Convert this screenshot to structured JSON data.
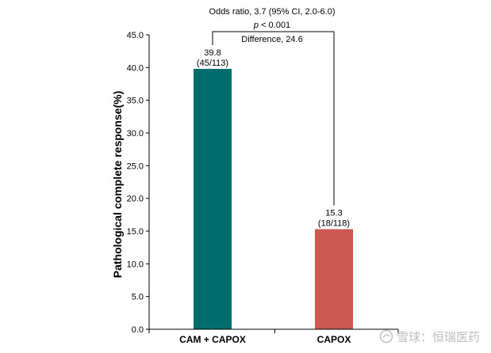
{
  "chart_data": {
    "type": "bar",
    "categories": [
      "CAM + CAPOX",
      "CAPOX"
    ],
    "values": [
      39.8,
      15.3
    ],
    "data_labels": [
      {
        "value": "39.8",
        "count": "(45/113)"
      },
      {
        "value": "15.3",
        "count": "(18/118)"
      }
    ],
    "colors": [
      "#006c6c",
      "#cd5a52"
    ],
    "ylabel": "Pathological complete response(%)",
    "xlabel": "",
    "ylim": [
      0,
      45
    ],
    "yticks": [
      "0.0",
      "5.0",
      "10.0",
      "15.0",
      "20.0",
      "25.0",
      "30.0",
      "35.0",
      "40.0",
      "45.0"
    ],
    "grid": false,
    "annotations": {
      "odds_ratio": "Odds ratio, 3.7 (95% CI, 2.0-6.0)",
      "p_prefix": "p",
      "p_value": " < 0.001",
      "difference": "Difference, 24.6"
    }
  },
  "watermark": {
    "text": "雪球：恒瑞医药",
    "icon": "snowball-logo-icon"
  }
}
